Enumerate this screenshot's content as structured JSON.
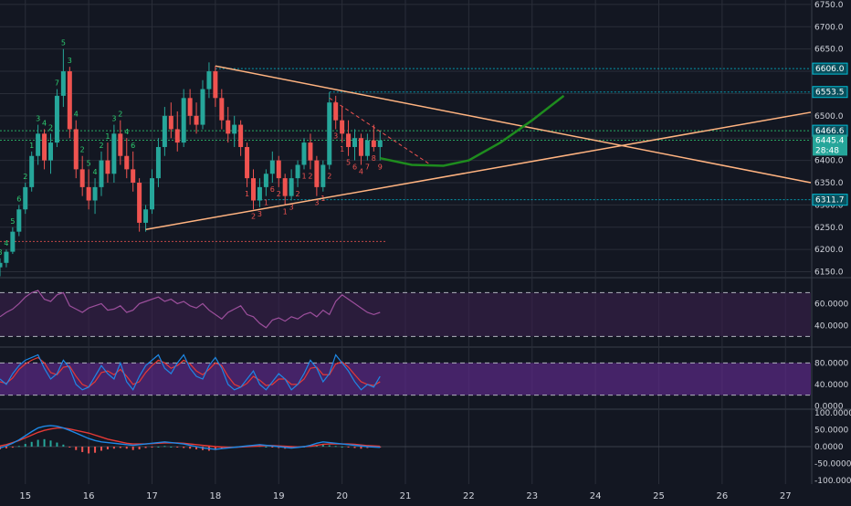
{
  "colors": {
    "background": "#131722",
    "grid": "#2a2e39",
    "candle_up": "#26a69a",
    "candle_down": "#ef5350",
    "trendline": "#ffb380",
    "projection": "#1e8c1e",
    "rsi_line": "#9c4f9c",
    "rsi_band": "#3a1f4d",
    "stoch_k": "#1e88e5",
    "stoch_d": "#e53935",
    "stoch_band": "#5b2a86",
    "macd_line": "#1e88e5",
    "signal_line": "#e53935",
    "histogram_pos": "#26a69a",
    "histogram_neg": "#ef5350",
    "axis_text": "#d1d4dc",
    "tag_price": "#26a69a",
    "tag_level": "#00bcd4",
    "td_green": "#2ecc71",
    "td_red": "#ef5350"
  },
  "chart_data": [
    {
      "type": "candlestick",
      "pane": "price",
      "x_axis": {
        "tick_labels": [
          "15",
          "16",
          "17",
          "18",
          "19",
          "20",
          "21",
          "22",
          "23",
          "24",
          "25",
          "26",
          "27"
        ],
        "range": [
          14.6,
          27.4
        ]
      },
      "y_axis": {
        "tick_labels": [
          "6750.0",
          "6700.0",
          "6650.0",
          "6600.0",
          "6550.0",
          "6500.0",
          "6450.0",
          "6400.0",
          "6350.0",
          "6300.0",
          "6250.0",
          "6200.0",
          "6150.0"
        ],
        "ylim": [
          6145,
          6760
        ],
        "side": "right"
      },
      "price_tags": [
        {
          "label": "6606.0",
          "value": 6606.0,
          "style": "level"
        },
        {
          "label": "6553.5",
          "value": 6553.5,
          "style": "level"
        },
        {
          "label": "6466.6",
          "value": 6466.6,
          "style": "level"
        },
        {
          "label": "6445.4",
          "value": 6445.4,
          "style": "current"
        },
        {
          "label": "28:48",
          "value": 6423,
          "style": "countdown"
        },
        {
          "label": "6311.7",
          "value": 6311.7,
          "style": "level"
        }
      ],
      "horizontal_levels": [
        {
          "value": 6606.0,
          "from": 18.0,
          "to": 27.4,
          "color": "cyan",
          "style": "dotted"
        },
        {
          "value": 6553.5,
          "from": 19.8,
          "to": 27.4,
          "color": "cyan",
          "style": "dotted"
        },
        {
          "value": 6466.6,
          "from": 14.6,
          "to": 27.4,
          "color": "green",
          "style": "dotted"
        },
        {
          "value": 6445.4,
          "from": 14.6,
          "to": 27.4,
          "color": "green",
          "style": "dotted"
        },
        {
          "value": 6311.7,
          "from": 18.6,
          "to": 27.4,
          "color": "cyan",
          "style": "dotted"
        },
        {
          "value": 6218,
          "from": 14.6,
          "to": 20.7,
          "color": "red",
          "style": "dotted"
        }
      ],
      "trendlines": [
        {
          "name": "descending resistance",
          "points": [
            [
              18.0,
              6612
            ],
            [
              27.4,
              6350
            ]
          ]
        },
        {
          "name": "ascending support",
          "points": [
            [
              16.9,
              6245
            ],
            [
              27.4,
              6508
            ]
          ]
        },
        {
          "name": "short dashed",
          "points": [
            [
              19.8,
              6540
            ],
            [
              21.4,
              6390
            ]
          ],
          "style": "dashed"
        }
      ],
      "projection_path": [
        [
          20.6,
          6405
        ],
        [
          21.1,
          6390
        ],
        [
          21.6,
          6388
        ],
        [
          22.0,
          6400
        ],
        [
          22.5,
          6440
        ],
        [
          23.0,
          6490
        ],
        [
          23.5,
          6545
        ]
      ],
      "candles_ohlc_anchor": [
        [
          14.6,
          6160,
          6180,
          6140,
          6170
        ],
        [
          14.7,
          6170,
          6200,
          6160,
          6195
        ],
        [
          14.8,
          6195,
          6250,
          6190,
          6240
        ],
        [
          14.9,
          6240,
          6300,
          6230,
          6290
        ],
        [
          15.0,
          6290,
          6350,
          6280,
          6340
        ],
        [
          15.1,
          6340,
          6420,
          6330,
          6410
        ],
        [
          15.2,
          6410,
          6480,
          6390,
          6460
        ],
        [
          15.3,
          6460,
          6470,
          6380,
          6400
        ],
        [
          15.4,
          6400,
          6460,
          6370,
          6440
        ],
        [
          15.5,
          6440,
          6560,
          6430,
          6545
        ],
        [
          15.6,
          6545,
          6650,
          6520,
          6600
        ],
        [
          15.7,
          6600,
          6610,
          6450,
          6470
        ],
        [
          15.8,
          6470,
          6490,
          6360,
          6380
        ],
        [
          15.9,
          6380,
          6410,
          6320,
          6340
        ],
        [
          16.0,
          6340,
          6380,
          6290,
          6310
        ],
        [
          16.1,
          6310,
          6360,
          6280,
          6340
        ],
        [
          16.2,
          6340,
          6420,
          6320,
          6400
        ],
        [
          16.3,
          6400,
          6440,
          6350,
          6370
        ],
        [
          16.4,
          6370,
          6480,
          6350,
          6460
        ],
        [
          16.5,
          6460,
          6490,
          6390,
          6410
        ],
        [
          16.6,
          6410,
          6450,
          6360,
          6380
        ],
        [
          16.7,
          6380,
          6420,
          6330,
          6350
        ],
        [
          16.8,
          6350,
          6360,
          6240,
          6260
        ],
        [
          16.9,
          6260,
          6300,
          6240,
          6290
        ],
        [
          17.0,
          6290,
          6380,
          6280,
          6360
        ],
        [
          17.1,
          6360,
          6450,
          6340,
          6430
        ],
        [
          17.2,
          6430,
          6520,
          6410,
          6500
        ],
        [
          17.3,
          6500,
          6530,
          6450,
          6470
        ],
        [
          17.4,
          6470,
          6510,
          6420,
          6440
        ],
        [
          17.5,
          6440,
          6560,
          6430,
          6540
        ],
        [
          17.6,
          6540,
          6560,
          6480,
          6500
        ],
        [
          17.7,
          6500,
          6530,
          6460,
          6480
        ],
        [
          17.8,
          6480,
          6580,
          6470,
          6560
        ],
        [
          17.9,
          6560,
          6620,
          6540,
          6600
        ],
        [
          18.0,
          6600,
          6612,
          6520,
          6540
        ],
        [
          18.1,
          6540,
          6560,
          6470,
          6490
        ],
        [
          18.2,
          6490,
          6520,
          6440,
          6460
        ],
        [
          18.3,
          6460,
          6500,
          6430,
          6480
        ],
        [
          18.4,
          6480,
          6490,
          6410,
          6430
        ],
        [
          18.5,
          6430,
          6440,
          6340,
          6360
        ],
        [
          18.6,
          6360,
          6380,
          6290,
          6310
        ],
        [
          18.7,
          6310,
          6360,
          6295,
          6340
        ],
        [
          18.8,
          6340,
          6380,
          6320,
          6370
        ],
        [
          18.9,
          6370,
          6420,
          6350,
          6400
        ],
        [
          19.0,
          6400,
          6410,
          6340,
          6360
        ],
        [
          19.1,
          6360,
          6370,
          6300,
          6320
        ],
        [
          19.2,
          6320,
          6380,
          6310,
          6360
        ],
        [
          19.3,
          6360,
          6400,
          6340,
          6390
        ],
        [
          19.4,
          6390,
          6450,
          6380,
          6440
        ],
        [
          19.5,
          6440,
          6460,
          6380,
          6400
        ],
        [
          19.6,
          6400,
          6410,
          6320,
          6340
        ],
        [
          19.7,
          6340,
          6400,
          6330,
          6390
        ],
        [
          19.8,
          6390,
          6553,
          6380,
          6530
        ],
        [
          19.9,
          6530,
          6545,
          6470,
          6490
        ],
        [
          20.0,
          6490,
          6520,
          6440,
          6460
        ],
        [
          20.1,
          6460,
          6490,
          6410,
          6430
        ],
        [
          20.2,
          6430,
          6470,
          6400,
          6450
        ],
        [
          20.3,
          6450,
          6460,
          6390,
          6410
        ],
        [
          20.4,
          6410,
          6460,
          6400,
          6445
        ],
        [
          20.5,
          6445,
          6480,
          6420,
          6430
        ],
        [
          20.6,
          6430,
          6466,
          6400,
          6445
        ]
      ],
      "td_count_labels_green": [
        "3",
        "4",
        "5",
        "6",
        "2",
        "1",
        "3",
        "4",
        "2",
        "7",
        "5",
        "3",
        "4",
        "2",
        "5",
        "4",
        "2",
        "1",
        "3",
        "2",
        "4",
        "6"
      ],
      "td_count_labels_red": [
        "1",
        "2",
        "3",
        "1",
        "6",
        "2",
        "1",
        "3",
        "2",
        "1",
        "2",
        "3",
        "1",
        "2",
        "3",
        "1",
        "5",
        "6",
        "4",
        "7",
        "8",
        "9"
      ]
    },
    {
      "type": "line",
      "pane": "rsi",
      "y_axis": {
        "tick_labels": [
          "60.0000",
          "40.0000"
        ],
        "ylim": [
          22,
          82
        ]
      },
      "band": [
        30,
        70
      ],
      "series": [
        {
          "values": [
            48,
            52,
            55,
            60,
            66,
            70,
            72,
            64,
            62,
            68,
            70,
            58,
            55,
            52,
            56,
            58,
            60,
            54,
            55,
            58,
            52,
            54,
            60,
            62,
            64,
            66,
            62,
            64,
            60,
            62,
            58,
            56,
            60,
            54,
            50,
            46,
            52,
            55,
            58,
            50,
            48,
            42,
            38,
            45,
            47,
            44,
            48,
            46,
            50,
            52,
            48,
            54,
            50,
            62,
            68,
            64,
            60,
            56,
            52,
            50,
            52
          ]
        }
      ]
    },
    {
      "type": "line",
      "pane": "stochastic",
      "y_axis": {
        "tick_labels": [
          "80.0000",
          "40.0000",
          "0.0000"
        ],
        "ylim": [
          -6,
          106
        ]
      },
      "band": [
        20,
        80
      ],
      "series": [
        {
          "values": [
            50,
            40,
            60,
            75,
            85,
            90,
            95,
            70,
            50,
            60,
            85,
            70,
            40,
            30,
            35,
            55,
            75,
            60,
            50,
            80,
            45,
            30,
            55,
            75,
            85,
            95,
            70,
            60,
            80,
            95,
            70,
            55,
            50,
            75,
            90,
            70,
            40,
            30,
            35,
            50,
            65,
            40,
            30,
            45,
            60,
            50,
            30,
            40,
            60,
            85,
            70,
            45,
            60,
            95,
            80,
            65,
            45,
            30,
            40,
            35,
            55
          ]
        },
        {
          "values": [
            45,
            42,
            52,
            68,
            78,
            85,
            90,
            80,
            62,
            58,
            72,
            74,
            55,
            40,
            35,
            45,
            62,
            65,
            58,
            68,
            55,
            40,
            45,
            62,
            75,
            85,
            80,
            70,
            75,
            85,
            78,
            65,
            58,
            68,
            80,
            75,
            55,
            40,
            35,
            42,
            55,
            48,
            38,
            40,
            50,
            50,
            40,
            40,
            50,
            70,
            72,
            58,
            58,
            78,
            82,
            72,
            58,
            45,
            40,
            38,
            45
          ]
        }
      ]
    },
    {
      "type": "bar",
      "pane": "macd",
      "y_axis": {
        "tick_labels": [
          "100.0000",
          "50.0000",
          "0.0000",
          "-50.0000",
          "-100.0000"
        ],
        "ylim": [
          -105,
          105
        ]
      },
      "series": [
        {
          "values": [
            -8,
            -5,
            -3,
            2,
            8,
            14,
            20,
            22,
            18,
            12,
            6,
            -2,
            -10,
            -16,
            -20,
            -18,
            -12,
            -8,
            -6,
            -4,
            -6,
            -10,
            -8,
            -4,
            -2,
            0,
            2,
            0,
            -2,
            -4,
            -6,
            -8,
            -10,
            -12,
            -10,
            -6,
            -4,
            -2,
            0,
            2,
            4,
            2,
            0,
            -2,
            -4,
            -6,
            -4,
            -2,
            0,
            2,
            4,
            6,
            4,
            2,
            0,
            -2,
            -4,
            -6,
            -4,
            -2,
            -1
          ]
        },
        {
          "values": [
            -4,
            2,
            10,
            20,
            32,
            44,
            55,
            60,
            62,
            60,
            55,
            48,
            40,
            32,
            24,
            18,
            14,
            12,
            10,
            8,
            6,
            4,
            6,
            8,
            10,
            12,
            14,
            12,
            10,
            8,
            4,
            0,
            -4,
            -6,
            -8,
            -6,
            -4,
            -2,
            0,
            2,
            4,
            6,
            4,
            2,
            0,
            -2,
            -4,
            -2,
            0,
            4,
            10,
            14,
            12,
            10,
            8,
            6,
            4,
            2,
            0,
            -1,
            -2
          ]
        },
        {
          "values": [
            2,
            6,
            12,
            18,
            26,
            34,
            42,
            48,
            52,
            55,
            55,
            52,
            48,
            44,
            40,
            34,
            28,
            22,
            18,
            14,
            10,
            8,
            8,
            8,
            9,
            10,
            11,
            11,
            11,
            10,
            8,
            6,
            4,
            2,
            0,
            -1,
            -2,
            -2,
            -1,
            0,
            1,
            2,
            3,
            3,
            2,
            1,
            0,
            -1,
            0,
            1,
            4,
            7,
            8,
            8,
            8,
            8,
            7,
            5,
            3,
            2,
            1
          ]
        }
      ]
    }
  ]
}
